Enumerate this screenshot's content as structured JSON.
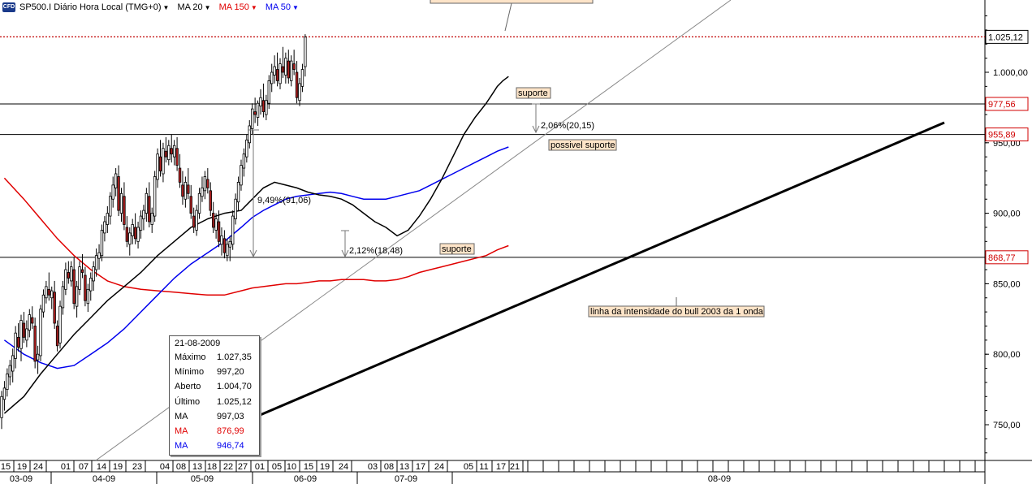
{
  "header": {
    "symbol": "SP500.I",
    "timeframe": "Diário Hora Local (TMG+0)",
    "logo_text": "CFD",
    "ma20_label": "MA 20",
    "ma150_label": "MA 150",
    "ma50_label": "MA 50",
    "ma20_color": "#000000",
    "ma150_color": "#e00000",
    "ma50_color": "#0000ee"
  },
  "tooltip": {
    "date": "21-08-2009",
    "rows": [
      {
        "label": "Máximo",
        "value": "1.027,35",
        "color": "#000000"
      },
      {
        "label": "Mínimo",
        "value": "997,20",
        "color": "#000000"
      },
      {
        "label": "Aberto",
        "value": "1.004,70",
        "color": "#000000"
      },
      {
        "label": "Último",
        "value": "1.025,12",
        "color": "#000000"
      },
      {
        "label": "MA",
        "value": "997,03",
        "color": "#000000"
      },
      {
        "label": "MA",
        "value": "876,99",
        "color": "#e00000"
      },
      {
        "label": "MA",
        "value": "946,74",
        "color": "#0000ee"
      }
    ]
  },
  "annotations": {
    "suporte_top": "suporte",
    "possivel_suporte": "possivel suporte",
    "suporte_bottom": "suporte",
    "pct_right": "2,06%(20,15)",
    "pct_mid": "9,49%(91,06)",
    "pct_low": "2,12%(18,48)",
    "bull_line": "linha da intensidade do bull 2003 da 1 onda"
  },
  "price_markers": [
    {
      "value": 1025.12,
      "label": "1.025,12",
      "color": "#000000"
    },
    {
      "value": 977.56,
      "label": "977,56",
      "color": "#d00000"
    },
    {
      "value": 955.89,
      "label": "955,89",
      "color": "#d00000"
    },
    {
      "value": 868.77,
      "label": "868,77",
      "color": "#d00000"
    }
  ],
  "chart_data": {
    "type": "candlestick",
    "y_axis": {
      "min": 720,
      "max": 1045,
      "ticks": [
        {
          "value": 1000,
          "label": "1.000,00"
        },
        {
          "value": 950,
          "label": "950,00"
        },
        {
          "value": 900,
          "label": "900,00"
        },
        {
          "value": 850,
          "label": "850,00"
        },
        {
          "value": 800,
          "label": "800,00"
        },
        {
          "value": 750,
          "label": "750,00"
        }
      ]
    },
    "x_days": [
      "15",
      "19",
      "24",
      "01",
      "07",
      "14",
      "19",
      "23",
      "04",
      "08",
      "13",
      "18",
      "22",
      "27",
      "01",
      "05",
      "10",
      "15",
      "19",
      "24",
      "03",
      "08",
      "13",
      "17",
      "24",
      "05",
      "11",
      "17",
      "21"
    ],
    "x_months": [
      "03-09",
      "04-09",
      "05-09",
      "06-09",
      "07-09",
      "08-09"
    ],
    "horizontal_levels": [
      1025.12,
      977.56,
      955.89,
      868.77
    ],
    "candles": [
      [
        755,
        774,
        747,
        770
      ],
      [
        768,
        781,
        760,
        776
      ],
      [
        775,
        790,
        770,
        786
      ],
      [
        784,
        796,
        778,
        792
      ],
      [
        788,
        804,
        780,
        799
      ],
      [
        797,
        820,
        790,
        815
      ],
      [
        812,
        822,
        802,
        805
      ],
      [
        804,
        828,
        795,
        824
      ],
      [
        822,
        830,
        808,
        812
      ],
      [
        810,
        824,
        805,
        818
      ],
      [
        817,
        832,
        812,
        828
      ],
      [
        826,
        834,
        818,
        822
      ],
      [
        820,
        826,
        790,
        795
      ],
      [
        796,
        806,
        786,
        800
      ],
      [
        799,
        835,
        795,
        832
      ],
      [
        830,
        846,
        826,
        842
      ],
      [
        840,
        852,
        836,
        848
      ],
      [
        846,
        858,
        838,
        842
      ],
      [
        840,
        848,
        832,
        845
      ],
      [
        844,
        852,
        818,
        822
      ],
      [
        820,
        824,
        802,
        806
      ],
      [
        808,
        838,
        804,
        834
      ],
      [
        833,
        852,
        828,
        848
      ],
      [
        846,
        865,
        842,
        860
      ],
      [
        858,
        866,
        850,
        854
      ],
      [
        852,
        866,
        848,
        862
      ],
      [
        860,
        869,
        832,
        836
      ],
      [
        834,
        852,
        826,
        848
      ],
      [
        846,
        866,
        842,
        862
      ],
      [
        860,
        871,
        854,
        858
      ],
      [
        856,
        862,
        834,
        838
      ],
      [
        836,
        850,
        830,
        846
      ],
      [
        845,
        858,
        838,
        854
      ],
      [
        852,
        866,
        845,
        862
      ],
      [
        860,
        875,
        855,
        870
      ],
      [
        868,
        878,
        860,
        872
      ],
      [
        870,
        892,
        866,
        888
      ],
      [
        886,
        898,
        880,
        894
      ],
      [
        892,
        905,
        886,
        900
      ],
      [
        898,
        915,
        892,
        912
      ],
      [
        910,
        926,
        904,
        920
      ],
      [
        918,
        932,
        912,
        928
      ],
      [
        926,
        934,
        898,
        902
      ],
      [
        900,
        918,
        894,
        914
      ],
      [
        912,
        922,
        888,
        892
      ],
      [
        890,
        898,
        876,
        880
      ],
      [
        878,
        890,
        870,
        886
      ],
      [
        884,
        896,
        878,
        892
      ],
      [
        890,
        900,
        878,
        882
      ],
      [
        880,
        894,
        875,
        890
      ],
      [
        888,
        902,
        882,
        898
      ],
      [
        896,
        906,
        888,
        902
      ],
      [
        900,
        918,
        894,
        914
      ],
      [
        912,
        922,
        890,
        894
      ],
      [
        892,
        904,
        886,
        900
      ],
      [
        898,
        930,
        894,
        926
      ],
      [
        924,
        946,
        918,
        942
      ],
      [
        940,
        952,
        926,
        930
      ],
      [
        928,
        950,
        922,
        946
      ],
      [
        944,
        954,
        936,
        940
      ],
      [
        938,
        952,
        934,
        948
      ],
      [
        946,
        956,
        936,
        942
      ],
      [
        940,
        952,
        934,
        948
      ],
      [
        946,
        954,
        930,
        934
      ],
      [
        932,
        942,
        918,
        922
      ],
      [
        920,
        930,
        906,
        912
      ],
      [
        910,
        926,
        904,
        922
      ],
      [
        920,
        932,
        910,
        914
      ],
      [
        912,
        920,
        896,
        900
      ],
      [
        898,
        904,
        886,
        890
      ],
      [
        888,
        906,
        884,
        902
      ],
      [
        900,
        918,
        896,
        914
      ],
      [
        912,
        926,
        908,
        918
      ],
      [
        916,
        930,
        910,
        926
      ],
      [
        924,
        932,
        914,
        918
      ],
      [
        916,
        922,
        898,
        902
      ],
      [
        900,
        908,
        886,
        890
      ],
      [
        888,
        900,
        882,
        896
      ],
      [
        894,
        902,
        876,
        880
      ],
      [
        878,
        890,
        870,
        884
      ],
      [
        882,
        888,
        868,
        872
      ],
      [
        870,
        882,
        866,
        878
      ],
      [
        876,
        884,
        866,
        880
      ],
      [
        878,
        902,
        874,
        898
      ],
      [
        896,
        914,
        892,
        910
      ],
      [
        908,
        926,
        902,
        922
      ],
      [
        920,
        938,
        916,
        934
      ],
      [
        932,
        946,
        926,
        942
      ],
      [
        940,
        956,
        936,
        952
      ],
      [
        950,
        966,
        946,
        962
      ],
      [
        960,
        978,
        956,
        974
      ],
      [
        972,
        982,
        964,
        970
      ],
      [
        968,
        980,
        962,
        978
      ],
      [
        976,
        988,
        970,
        982
      ],
      [
        980,
        992,
        968,
        972
      ],
      [
        970,
        984,
        966,
        980
      ],
      [
        978,
        998,
        974,
        994
      ],
      [
        992,
        1006,
        986,
        1000
      ],
      [
        998,
        1012,
        992,
        1004
      ],
      [
        1002,
        1014,
        990,
        994
      ],
      [
        992,
        1010,
        988,
        1006
      ],
      [
        1004,
        1018,
        996,
        1000
      ],
      [
        998,
        1014,
        992,
        1010
      ],
      [
        1008,
        1016,
        992,
        996
      ],
      [
        994,
        1012,
        990,
        1008
      ],
      [
        1006,
        1016,
        998,
        1002
      ],
      [
        1000,
        1008,
        978,
        982
      ],
      [
        980,
        996,
        976,
        992
      ],
      [
        990,
        1006,
        986,
        1002
      ],
      [
        1004,
        1027,
        997,
        1025
      ]
    ],
    "ma20": [
      [
        1,
        758
      ],
      [
        8,
        770
      ],
      [
        14,
        786
      ],
      [
        20,
        800
      ],
      [
        26,
        814
      ],
      [
        32,
        826
      ],
      [
        38,
        838
      ],
      [
        44,
        848
      ],
      [
        50,
        858
      ],
      [
        56,
        870
      ],
      [
        62,
        880
      ],
      [
        68,
        890
      ],
      [
        74,
        896
      ],
      [
        80,
        900
      ],
      [
        86,
        902
      ],
      [
        90,
        910
      ],
      [
        94,
        918
      ],
      [
        98,
        922
      ],
      [
        102,
        920
      ],
      [
        106,
        918
      ],
      [
        110,
        915
      ],
      [
        114,
        913
      ],
      [
        118,
        912
      ],
      [
        122,
        910
      ],
      [
        126,
        906
      ],
      [
        130,
        900
      ],
      [
        134,
        894
      ],
      [
        138,
        890
      ],
      [
        142,
        884
      ],
      [
        146,
        888
      ],
      [
        150,
        898
      ],
      [
        154,
        910
      ],
      [
        158,
        924
      ],
      [
        162,
        940
      ],
      [
        166,
        956
      ],
      [
        170,
        968
      ],
      [
        174,
        978
      ],
      [
        176,
        984
      ],
      [
        178,
        990
      ],
      [
        180,
        994
      ],
      [
        182,
        997
      ]
    ],
    "ma50": [
      [
        1,
        810
      ],
      [
        8,
        800
      ],
      [
        14,
        794
      ],
      [
        20,
        790
      ],
      [
        26,
        792
      ],
      [
        32,
        800
      ],
      [
        38,
        808
      ],
      [
        44,
        818
      ],
      [
        50,
        830
      ],
      [
        56,
        842
      ],
      [
        62,
        854
      ],
      [
        68,
        864
      ],
      [
        74,
        872
      ],
      [
        80,
        880
      ],
      [
        86,
        890
      ],
      [
        90,
        897
      ],
      [
        94,
        902
      ],
      [
        98,
        906
      ],
      [
        102,
        910
      ],
      [
        106,
        912
      ],
      [
        110,
        913
      ],
      [
        114,
        914
      ],
      [
        118,
        915
      ],
      [
        122,
        914
      ],
      [
        126,
        912
      ],
      [
        130,
        910
      ],
      [
        134,
        910
      ],
      [
        138,
        910
      ],
      [
        142,
        912
      ],
      [
        146,
        914
      ],
      [
        150,
        916
      ],
      [
        154,
        920
      ],
      [
        158,
        924
      ],
      [
        162,
        928
      ],
      [
        166,
        932
      ],
      [
        170,
        936
      ],
      [
        174,
        940
      ],
      [
        178,
        944
      ],
      [
        182,
        947
      ]
    ],
    "ma150": [
      [
        1,
        925
      ],
      [
        8,
        910
      ],
      [
        14,
        896
      ],
      [
        20,
        882
      ],
      [
        26,
        870
      ],
      [
        32,
        860
      ],
      [
        38,
        852
      ],
      [
        44,
        848
      ],
      [
        50,
        846
      ],
      [
        56,
        845
      ],
      [
        62,
        844
      ],
      [
        68,
        843
      ],
      [
        74,
        842
      ],
      [
        80,
        842
      ],
      [
        86,
        845
      ],
      [
        90,
        847
      ],
      [
        94,
        848
      ],
      [
        98,
        849
      ],
      [
        102,
        850
      ],
      [
        106,
        850
      ],
      [
        110,
        851
      ],
      [
        114,
        852
      ],
      [
        118,
        852
      ],
      [
        122,
        853
      ],
      [
        126,
        853
      ],
      [
        130,
        853
      ],
      [
        134,
        852
      ],
      [
        138,
        852
      ],
      [
        142,
        853
      ],
      [
        146,
        855
      ],
      [
        150,
        858
      ],
      [
        154,
        860
      ],
      [
        158,
        862
      ],
      [
        162,
        864
      ],
      [
        166,
        866
      ],
      [
        170,
        868
      ],
      [
        174,
        870
      ],
      [
        178,
        874
      ],
      [
        182,
        877
      ]
    ]
  }
}
